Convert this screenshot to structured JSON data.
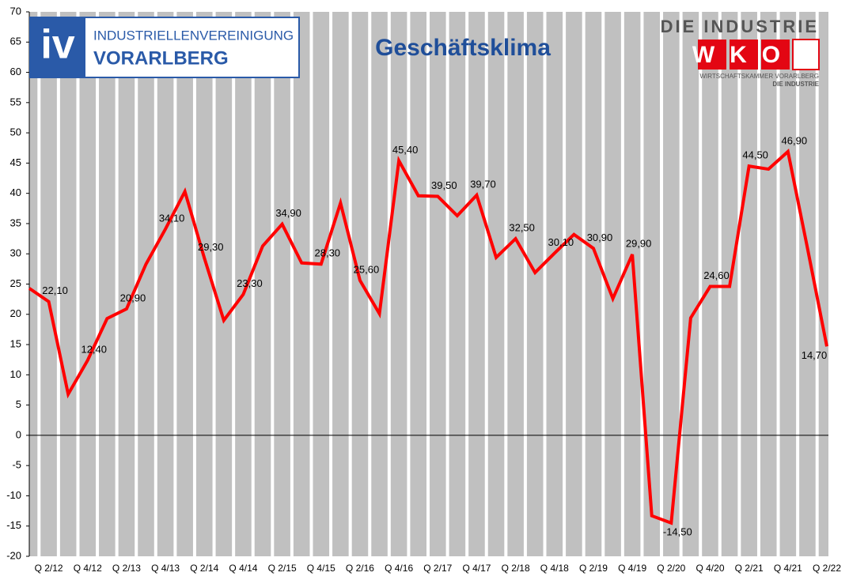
{
  "chart_data": {
    "type": "line",
    "title": "Geschäftsklima",
    "logos": {
      "iv_mark": "iv",
      "iv_line1": "INDUSTRIELLENVEREINIGUNG",
      "iv_line2": "VORARLBERG",
      "wko_top": "DIE INDUSTRIE",
      "wko_mark": "WKO",
      "wko_sub1": "WIRTSCHAFTSKAMMER VORARLBERG",
      "wko_sub2": "DIE INDUSTRIE"
    },
    "categories": [
      null,
      "Q 2/12",
      null,
      "Q 4/12",
      null,
      "Q 2/13",
      null,
      "Q 4/13",
      null,
      "Q 2/14",
      null,
      "Q 4/14",
      null,
      "Q 2/15",
      null,
      "Q 4/15",
      null,
      "Q 2/16",
      null,
      "Q 4/16",
      null,
      "Q 2/17",
      null,
      "Q 4/17",
      null,
      "Q 2/18",
      null,
      "Q 4/18",
      null,
      "Q 2/19",
      null,
      "Q 4/19",
      null,
      "Q 2/20",
      null,
      "Q 4/20",
      null,
      "Q 2/21",
      null,
      "Q 4/21",
      null,
      "Q 2/22"
    ],
    "series": [
      {
        "color": "#ff0000",
        "values": [
          24.3,
          22.1,
          6.8,
          12.4,
          19.3,
          20.9,
          28.3,
          34.1,
          40.3,
          29.3,
          19.0,
          23.3,
          31.3,
          34.9,
          28.5,
          28.3,
          38.4,
          25.6,
          20.1,
          45.4,
          39.6,
          39.5,
          36.3,
          39.7,
          29.4,
          32.5,
          26.9,
          30.1,
          33.2,
          30.9,
          22.6,
          29.9,
          -13.3,
          -14.5,
          19.4,
          24.6,
          24.6,
          44.5,
          44.0,
          46.9,
          31.0,
          14.7
        ],
        "value_labels": [
          null,
          "22,10",
          null,
          "12,40",
          null,
          "20,90",
          null,
          "34,10",
          null,
          "29,30",
          null,
          "23,30",
          null,
          "34,90",
          null,
          "28,30",
          null,
          "25,60",
          null,
          "45,40",
          null,
          "39,50",
          null,
          "39,70",
          null,
          "32,50",
          null,
          "30,10",
          null,
          "30,90",
          null,
          "29,90",
          null,
          "-14,50",
          null,
          "24,60",
          null,
          "44,50",
          null,
          "46,90",
          null,
          "14,70"
        ]
      }
    ],
    "ylim": [
      -20,
      70
    ],
    "yticks": [
      -20,
      -15,
      -10,
      -5,
      0,
      5,
      10,
      15,
      20,
      25,
      30,
      35,
      40,
      45,
      50,
      55,
      60,
      65,
      70
    ],
    "grid": true
  }
}
